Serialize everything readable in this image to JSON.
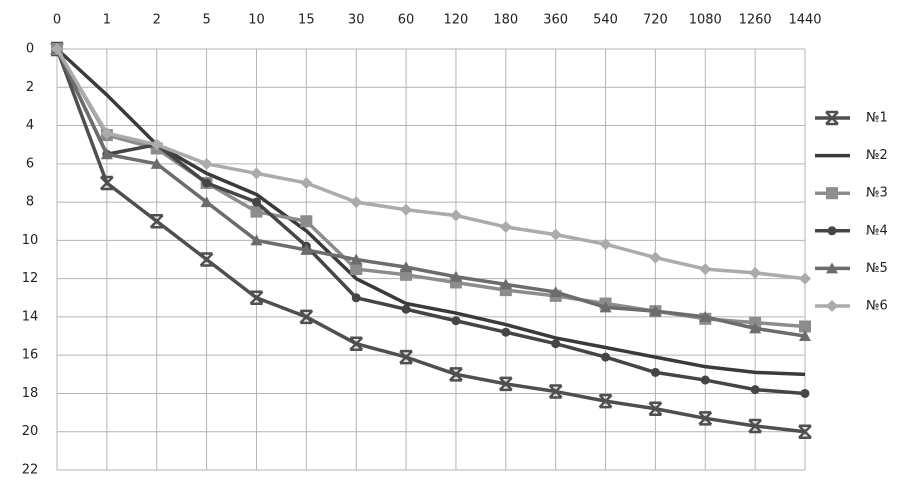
{
  "chart_data": {
    "type": "line",
    "categories": [
      "0",
      "1",
      "2",
      "5",
      "10",
      "15",
      "30",
      "60",
      "120",
      "180",
      "360",
      "540",
      "720",
      "1080",
      "1260",
      "1440"
    ],
    "ylim": [
      0,
      22
    ],
    "yticks": [
      0,
      2,
      4,
      6,
      8,
      10,
      12,
      14,
      16,
      18,
      20,
      22
    ],
    "y_inverted": true,
    "x_axis_position": "top",
    "grid": true,
    "legend_position": "right",
    "series": [
      {
        "name": "№1",
        "color": "#4f4f4f",
        "marker": "star",
        "values": [
          0,
          7,
          9,
          11,
          13,
          14,
          15.4,
          16.1,
          17,
          17.5,
          17.9,
          18.4,
          18.8,
          19.3,
          19.7,
          20
        ]
      },
      {
        "name": "№2",
        "color": "#3a3a3a",
        "marker": "none",
        "values": [
          0,
          2.4,
          5,
          6.5,
          7.6,
          9.5,
          12,
          13.3,
          13.8,
          14.4,
          15.1,
          15.6,
          16.1,
          16.6,
          16.9,
          17
        ]
      },
      {
        "name": "№3",
        "color": "#8c8c8c",
        "marker": "square",
        "values": [
          0,
          4.5,
          5.2,
          7,
          8.5,
          9,
          11.5,
          11.8,
          12.2,
          12.6,
          12.9,
          13.3,
          13.7,
          14.1,
          14.3,
          14.5
        ]
      },
      {
        "name": "№4",
        "color": "#454545",
        "marker": "circle",
        "values": [
          0,
          5.5,
          5,
          7,
          8,
          10.3,
          13,
          13.6,
          14.2,
          14.8,
          15.4,
          16.1,
          16.9,
          17.3,
          17.8,
          18
        ]
      },
      {
        "name": "№5",
        "color": "#6c6c6c",
        "marker": "triangle",
        "values": [
          0,
          5.5,
          6,
          8,
          10,
          10.5,
          11,
          11.4,
          11.9,
          12.3,
          12.7,
          13.5,
          13.7,
          14,
          14.6,
          15
        ]
      },
      {
        "name": "№6",
        "color": "#ababab",
        "marker": "diamond",
        "values": [
          0,
          4.4,
          5,
          6,
          6.5,
          7,
          8,
          8.4,
          8.7,
          9.3,
          9.7,
          10.2,
          10.9,
          11.5,
          11.7,
          12
        ]
      }
    ]
  }
}
